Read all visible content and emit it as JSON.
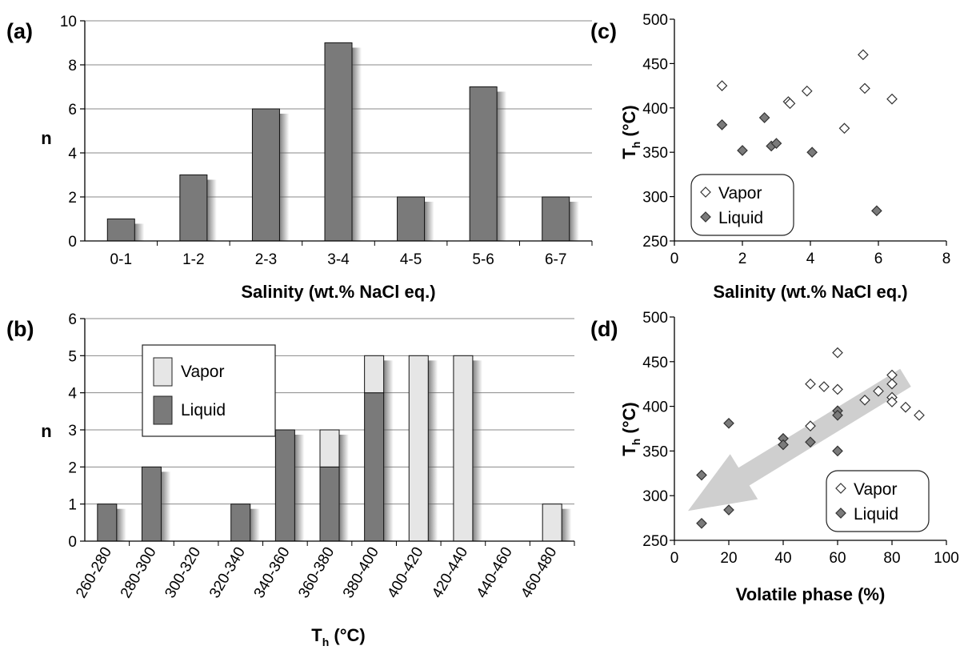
{
  "chart_data": [
    {
      "id": "a",
      "type": "bar",
      "panel_label": "(a)",
      "xlabel": "Salinity (wt.% NaCl eq.)",
      "ylabel": "n",
      "ylim": [
        0,
        10
      ],
      "yticks": [
        0,
        2,
        4,
        6,
        8,
        10
      ],
      "grid": true,
      "categories": [
        "0-1",
        "1-2",
        "2-3",
        "3-4",
        "4-5",
        "5-6",
        "6-7"
      ],
      "values": [
        1,
        3,
        6,
        9,
        2,
        7,
        2
      ]
    },
    {
      "id": "b",
      "type": "bar",
      "stacked": true,
      "panel_label": "(b)",
      "xlabel": "T",
      "xlabel_sub": "h",
      "xlabel_unit": " (°C)",
      "ylabel": "n",
      "ylim": [
        0,
        6
      ],
      "yticks": [
        0,
        1,
        2,
        3,
        4,
        5,
        6
      ],
      "grid": true,
      "legend_position": "top-left",
      "categories": [
        "260-280",
        "280-300",
        "300-320",
        "320-340",
        "340-360",
        "360-380",
        "380-400",
        "400-420",
        "420-440",
        "440-460",
        "460-480"
      ],
      "series": [
        {
          "name": "Liquid",
          "color": "#7a7a7a",
          "values": [
            1,
            2,
            0,
            1,
            3,
            2,
            4,
            0,
            0,
            0,
            0
          ]
        },
        {
          "name": "Vapor",
          "color": "#e6e6e6",
          "values": [
            0,
            0,
            0,
            0,
            0,
            1,
            1,
            5,
            5,
            0,
            1
          ]
        }
      ]
    },
    {
      "id": "c",
      "type": "scatter",
      "panel_label": "(c)",
      "xlabel": "Salinity (wt.% NaCl eq.)",
      "ylabel": "T",
      "ylabel_sub": "h",
      "ylabel_unit": " (°C)",
      "xlim": [
        0,
        8
      ],
      "ylim": [
        250,
        500
      ],
      "xticks": [
        0,
        2,
        4,
        6,
        8
      ],
      "yticks": [
        250,
        300,
        350,
        400,
        450,
        500
      ],
      "grid": false,
      "legend_position": "bottom-left",
      "series": [
        {
          "name": "Vapor",
          "marker": "open-diamond",
          "x": [
            1.4,
            3.35,
            3.4,
            3.9,
            5.0,
            5.55,
            5.6,
            6.4
          ],
          "y": [
            425,
            407,
            405,
            419,
            377,
            460,
            422,
            410
          ]
        },
        {
          "name": "Liquid",
          "marker": "filled-diamond",
          "x": [
            1.4,
            2.0,
            2.65,
            2.85,
            3.0,
            4.05,
            5.95
          ],
          "y": [
            381,
            352,
            389,
            357,
            360,
            350,
            284
          ]
        }
      ]
    },
    {
      "id": "d",
      "type": "scatter",
      "panel_label": "(d)",
      "xlabel": "Volatile phase (%)",
      "ylabel": "T",
      "ylabel_sub": "h",
      "ylabel_unit": " (°C)",
      "xlim": [
        0,
        100
      ],
      "ylim": [
        250,
        500
      ],
      "xticks": [
        0,
        20,
        40,
        60,
        80,
        100
      ],
      "yticks": [
        250,
        300,
        350,
        400,
        450,
        500
      ],
      "grid": false,
      "legend_position": "bottom-right",
      "annotation": "grey arrow trend from high volatile fraction / high temperature toward low volatile fraction / low temperature",
      "series": [
        {
          "name": "Vapor",
          "marker": "open-diamond",
          "x": [
            50,
            50,
            55,
            60,
            60,
            70,
            75,
            80,
            80,
            80,
            80,
            85,
            90
          ],
          "y": [
            378,
            425,
            422,
            460,
            419,
            407,
            417,
            435,
            425,
            410,
            405,
            399,
            390
          ]
        },
        {
          "name": "Liquid",
          "marker": "filled-diamond",
          "x": [
            10,
            10,
            20,
            20,
            40,
            40,
            50,
            60,
            60,
            60
          ],
          "y": [
            323,
            269,
            381,
            284,
            364,
            357,
            360,
            395,
            390,
            350
          ]
        }
      ]
    }
  ]
}
